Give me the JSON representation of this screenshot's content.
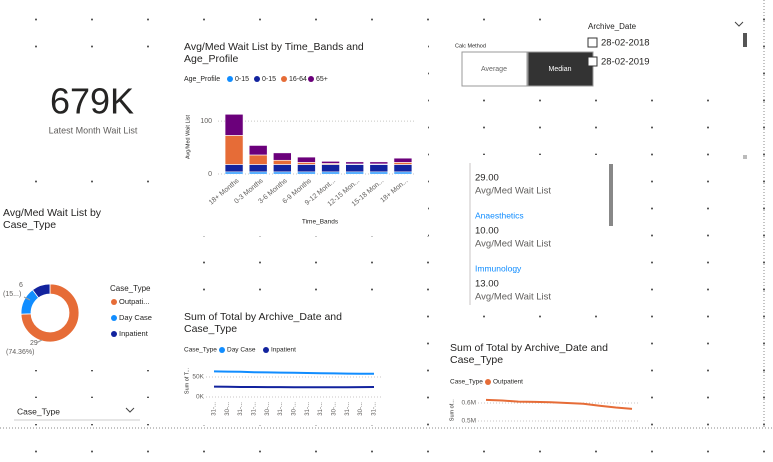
{
  "card": {
    "value": "679K",
    "label": "Latest Month Wait List"
  },
  "bar_chart": {
    "title": "Avg/Med Wait List by Time_Bands and Age_Profile",
    "legend_title": "Age_Profile",
    "y_axis_title": "Avg/Med Wait List",
    "x_axis_title": "Time_Bands",
    "ylim": [
      0,
      140
    ],
    "yticks": [
      0,
      100
    ],
    "categories": [
      "18+ Months",
      "0-3 Months",
      "3-6 Months",
      "6-9 Months",
      "9-12 Mont...",
      "12-15 Mon...",
      "15-18 Mon...",
      "18+ Mon..."
    ],
    "series": [
      {
        "name": "0-15",
        "color": "#118dff",
        "values": [
          4,
          4,
          4,
          4,
          4,
          4,
          4,
          4
        ]
      },
      {
        "name": "0-15",
        "color": "#12239e",
        "values": [
          14,
          14,
          14,
          14,
          14,
          14,
          14,
          14
        ]
      },
      {
        "name": "16-64",
        "color": "#e66c37",
        "values": [
          55,
          18,
          8,
          4,
          2,
          1,
          1,
          4
        ]
      },
      {
        "name": "65+",
        "color": "#6b007b",
        "values": [
          40,
          18,
          14,
          10,
          4,
          4,
          4,
          8
        ]
      }
    ]
  },
  "calc_method": {
    "title": "Calc Method",
    "options": [
      "Average",
      "Median"
    ],
    "selected": 1
  },
  "archive_date": {
    "title": "Archive_Date",
    "options": [
      "28-02-2018",
      "28-02-2019"
    ]
  },
  "multi_row_card": {
    "items": [
      {
        "value": "29.00",
        "label": "Avg/Med Wait List"
      },
      {
        "name": "Anaesthetics",
        "value": "10.00",
        "label": "Avg/Med Wait List"
      },
      {
        "name": "Immunology",
        "value": "13.00",
        "label": "Avg/Med Wait List"
      }
    ]
  },
  "donut": {
    "title": "Avg/Med Wait List by Case_Type",
    "legend_title": "Case_Type",
    "slices": [
      {
        "name": "Outpati...",
        "value": 29,
        "color": "#e66c37",
        "label": "29",
        "percent": "(74.36%)"
      },
      {
        "name": "Day Case",
        "value": 6,
        "color": "#118dff",
        "label": "6",
        "percent": "(15...)"
      },
      {
        "name": "Inpatient",
        "value": 4,
        "color": "#12239e"
      }
    ]
  },
  "case_type_slicer": {
    "title": "Case_Type"
  },
  "line_chart_1": {
    "title": "Sum of Total by Archive_Date and Case_Type",
    "legend_title": "Case_Type",
    "y_axis_title": "Sum of T...",
    "ylim": [
      0,
      80000
    ],
    "yticks": [
      {
        "value": 0,
        "label": "0K"
      },
      {
        "value": 50000,
        "label": "50K"
      }
    ],
    "categories": [
      "31-...",
      "30-...",
      "31-...",
      "31-...",
      "30-...",
      "31-...",
      "30-...",
      "31-...",
      "31-...",
      "30-...",
      "31-...",
      "30-...",
      "31-..."
    ],
    "series": [
      {
        "name": "Day Case",
        "color": "#118dff",
        "values": [
          64000,
          63500,
          63000,
          62000,
          61500,
          61000,
          60500,
          60000,
          59500,
          59000,
          58500,
          58000,
          58000
        ]
      },
      {
        "name": "Inpatient",
        "color": "#12239e",
        "values": [
          26000,
          25500,
          25000,
          25000,
          24800,
          24800,
          24500,
          24500,
          24500,
          24500,
          24500,
          24800,
          25000
        ]
      }
    ]
  },
  "line_chart_2": {
    "title": "Sum of Total by Archive_Date and Case_Type",
    "legend_title": "Case_Type",
    "y_axis_title": "Sum of...",
    "ylim": [
      480000,
      640000
    ],
    "yticks": [
      {
        "value": 500000,
        "label": "0.5M"
      },
      {
        "value": 600000,
        "label": "0.6M"
      }
    ],
    "series": [
      {
        "name": "Outpatient",
        "color": "#e66c37",
        "values": [
          617000,
          614000,
          608000,
          606000,
          604000,
          600000,
          596000,
          585000,
          575000,
          567000
        ]
      }
    ]
  }
}
